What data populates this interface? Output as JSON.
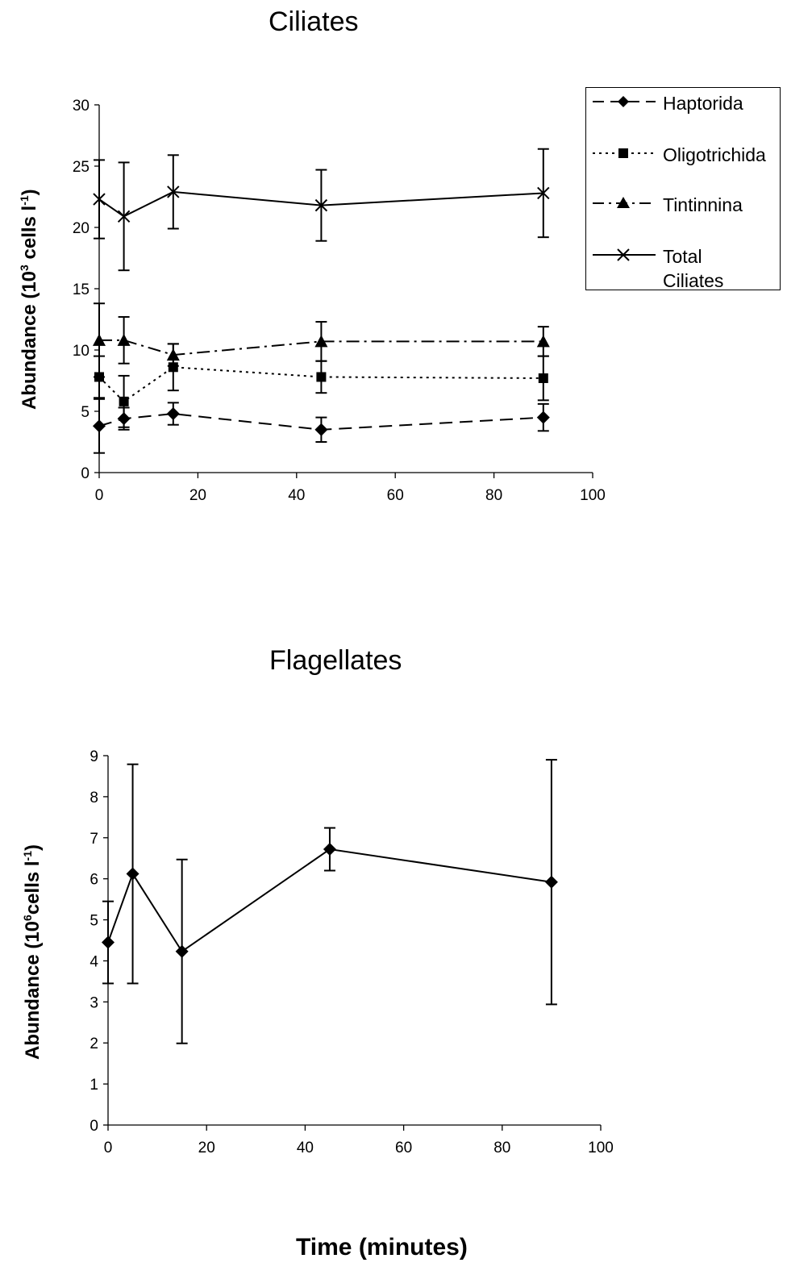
{
  "chart_data": [
    {
      "type": "line",
      "title": "Ciliates",
      "ylabel": {
        "prefix": "Abundance (10",
        "exp": "3",
        "middle": " cells l",
        "exp2": "-1",
        "suffix": ")"
      },
      "xlabel": "",
      "xlim": [
        0,
        100
      ],
      "ylim": [
        0,
        30
      ],
      "xticks": [
        "0",
        "20",
        "40",
        "60",
        "80",
        "100"
      ],
      "yticks": [
        "0",
        "5",
        "10",
        "15",
        "20",
        "25",
        "30"
      ],
      "legend_position": "top-right",
      "series": [
        {
          "name": "Haptorida",
          "marker": "diamond",
          "dash": "long-dash",
          "x": [
            0,
            5,
            15,
            45,
            90
          ],
          "y": [
            3.8,
            4.4,
            4.8,
            3.5,
            4.5
          ],
          "err": [
            2.2,
            0.9,
            0.9,
            1.0,
            1.1
          ]
        },
        {
          "name": "Oligotrichida",
          "marker": "square",
          "dash": "dotted",
          "x": [
            0,
            5,
            15,
            45,
            90
          ],
          "y": [
            7.8,
            5.8,
            8.6,
            7.8,
            7.7
          ],
          "err": [
            1.7,
            2.1,
            1.9,
            1.3,
            1.8
          ]
        },
        {
          "name": "Tintinnina",
          "marker": "triangle",
          "dash": "dash-dot",
          "x": [
            0,
            5,
            15,
            45,
            90
          ],
          "y": [
            10.8,
            10.8,
            9.6,
            10.7,
            10.7
          ],
          "err": [
            3.0,
            1.9,
            0.9,
            1.6,
            1.2
          ]
        },
        {
          "name": "Total Ciliates",
          "marker": "x",
          "dash": "solid",
          "x": [
            0,
            5,
            15,
            45,
            90
          ],
          "y": [
            22.3,
            20.9,
            22.9,
            21.8,
            22.8
          ],
          "err": [
            3.2,
            4.4,
            3.0,
            2.9,
            3.6
          ]
        }
      ]
    },
    {
      "type": "line",
      "title": "Flagellates",
      "ylabel": {
        "prefix": "Abundance (10",
        "exp": "6",
        "middle": "cells l",
        "exp2": "-1",
        "suffix": ")"
      },
      "xlabel": "Time (minutes)",
      "xlim": [
        0,
        100
      ],
      "ylim": [
        0,
        9
      ],
      "xticks": [
        "0",
        "20",
        "40",
        "60",
        "80",
        "100"
      ],
      "yticks": [
        "0",
        "1",
        "2",
        "3",
        "4",
        "5",
        "6",
        "7",
        "8",
        "9"
      ],
      "series": [
        {
          "marker": "diamond",
          "dash": "solid",
          "x": [
            0,
            5,
            15,
            45,
            90
          ],
          "y": [
            4.45,
            6.12,
            4.23,
            6.72,
            5.92
          ],
          "err": [
            1.0,
            2.67,
            2.24,
            0.52,
            2.98
          ]
        }
      ]
    }
  ]
}
